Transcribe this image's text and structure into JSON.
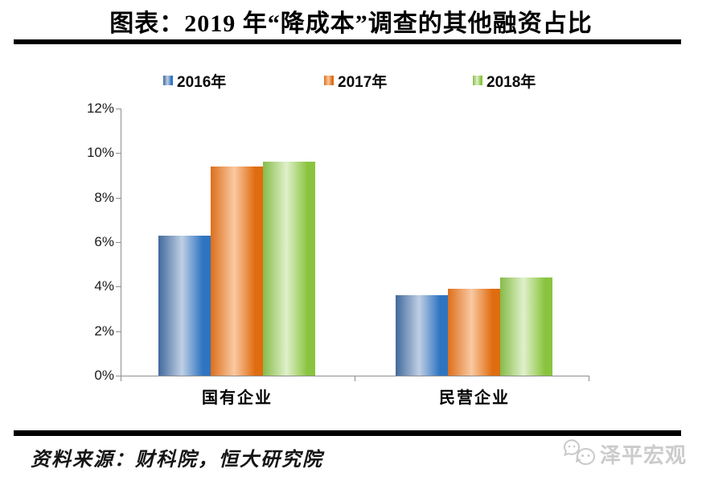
{
  "chart_data": {
    "type": "bar",
    "title": "图表：2019 年“降成本”调查的其他融资占比",
    "categories": [
      "国有企业",
      "民营企业"
    ],
    "series": [
      {
        "name": "2016年",
        "values": [
          6.3,
          3.6
        ],
        "colors": {
          "edge_left": "#41699C",
          "highlight": "#BFCFE4",
          "edge_right": "#2E74C1"
        }
      },
      {
        "name": "2017年",
        "values": [
          9.4,
          3.9
        ],
        "colors": {
          "edge_left": "#DD6F1C",
          "highlight": "#F9C9A2",
          "edge_right": "#E06C10"
        }
      },
      {
        "name": "2018年",
        "values": [
          9.6,
          4.4
        ],
        "colors": {
          "edge_left": "#86BC48",
          "highlight": "#DFF0CB",
          "edge_right": "#8AC43F"
        }
      }
    ],
    "ylim": [
      0,
      12
    ],
    "ytick_step": 2,
    "ytick_labels": [
      "0%",
      "2%",
      "4%",
      "6%",
      "8%",
      "10%",
      "12%"
    ],
    "xlabel": "",
    "ylabel": "",
    "grid": false,
    "legend_position": "top",
    "axis_color": "#8e8e8e"
  },
  "source": {
    "text": "资料来源：财科院，恒大研究院"
  },
  "watermark": {
    "text": "泽平宏观",
    "icon": "wechat-chat-bubbles-icon",
    "color": "#cbcbcb"
  }
}
